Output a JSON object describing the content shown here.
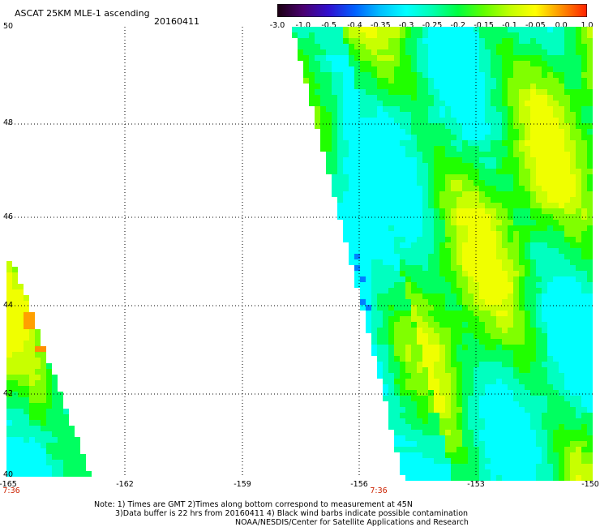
{
  "header": {
    "title": "ASCAT 25KM MLE-1 ascending",
    "date": "20160411"
  },
  "colorbar": {
    "labels": [
      "-3.0",
      "-1.0",
      "-0.5",
      "-0.4",
      "-0.35",
      "-0.3",
      "-0.25",
      "-0.2",
      "-0.15",
      "-0.1",
      "-0.05",
      "0.0",
      "1.0"
    ],
    "colors": [
      "#1a0010",
      "#4a0070",
      "#3010d0",
      "#0060ff",
      "#00c0ff",
      "#00ffff",
      "#00ffb0",
      "#00ff40",
      "#60ff00",
      "#c0ff00",
      "#ffff00",
      "#ff9000",
      "#ff2000"
    ]
  },
  "map": {
    "lat_labels": [
      "50",
      "48",
      "46",
      "44",
      "42",
      "40"
    ],
    "lon_labels": [
      "-165",
      "-162",
      "-159",
      "-156",
      "-153",
      "-150"
    ],
    "time_labels": [
      "7:36",
      "7:36"
    ],
    "lat_range": [
      40,
      50
    ],
    "lon_range": [
      -165,
      -150
    ]
  },
  "notes": {
    "line1": "Note: 1) Times are GMT 2)Times along bottom correspond to measurement at 45N",
    "line2": "3)Data buffer is 22 hrs from 20160411 4) Black wind barbs indicate possible contamination",
    "line3": "NOAA/NESDIS/Center for Satellite Applications and Research"
  }
}
